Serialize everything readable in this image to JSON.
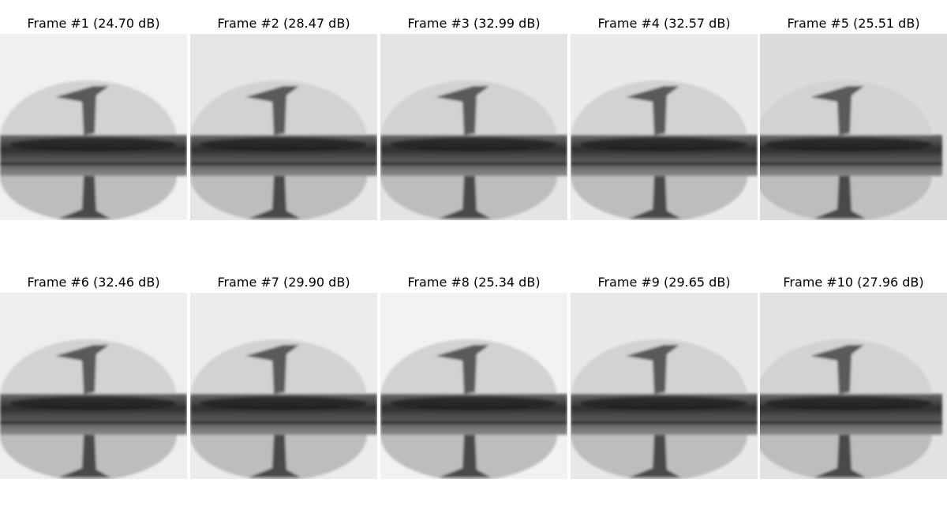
{
  "frames": [
    {
      "label": "Frame #1 (24.70 dB)",
      "background_color": "#f0f0f0"
    },
    {
      "label": "Frame #2 (28.47 dB)",
      "background_color": "#e6e6e6"
    },
    {
      "label": "Frame #3 (32.99 dB)",
      "background_color": "#e4e4e4"
    },
    {
      "label": "Frame #4 (32.57 dB)",
      "background_color": "#ebebeb"
    },
    {
      "label": "Frame #5 (25.51 dB)",
      "background_color": "#dcdcdc"
    },
    {
      "label": "Frame #6 (32.46 dB)",
      "background_color": "#eeeeee"
    },
    {
      "label": "Frame #7 (29.90 dB)",
      "background_color": "#ececec"
    },
    {
      "label": "Frame #8 (25.34 dB)",
      "background_color": "#f2f2f2"
    },
    {
      "label": "Frame #9 (29.65 dB)",
      "background_color": "#e8e8e8"
    },
    {
      "label": "Frame #10 (27.96 dB)",
      "background_color": "#e2e2e2"
    }
  ]
}
